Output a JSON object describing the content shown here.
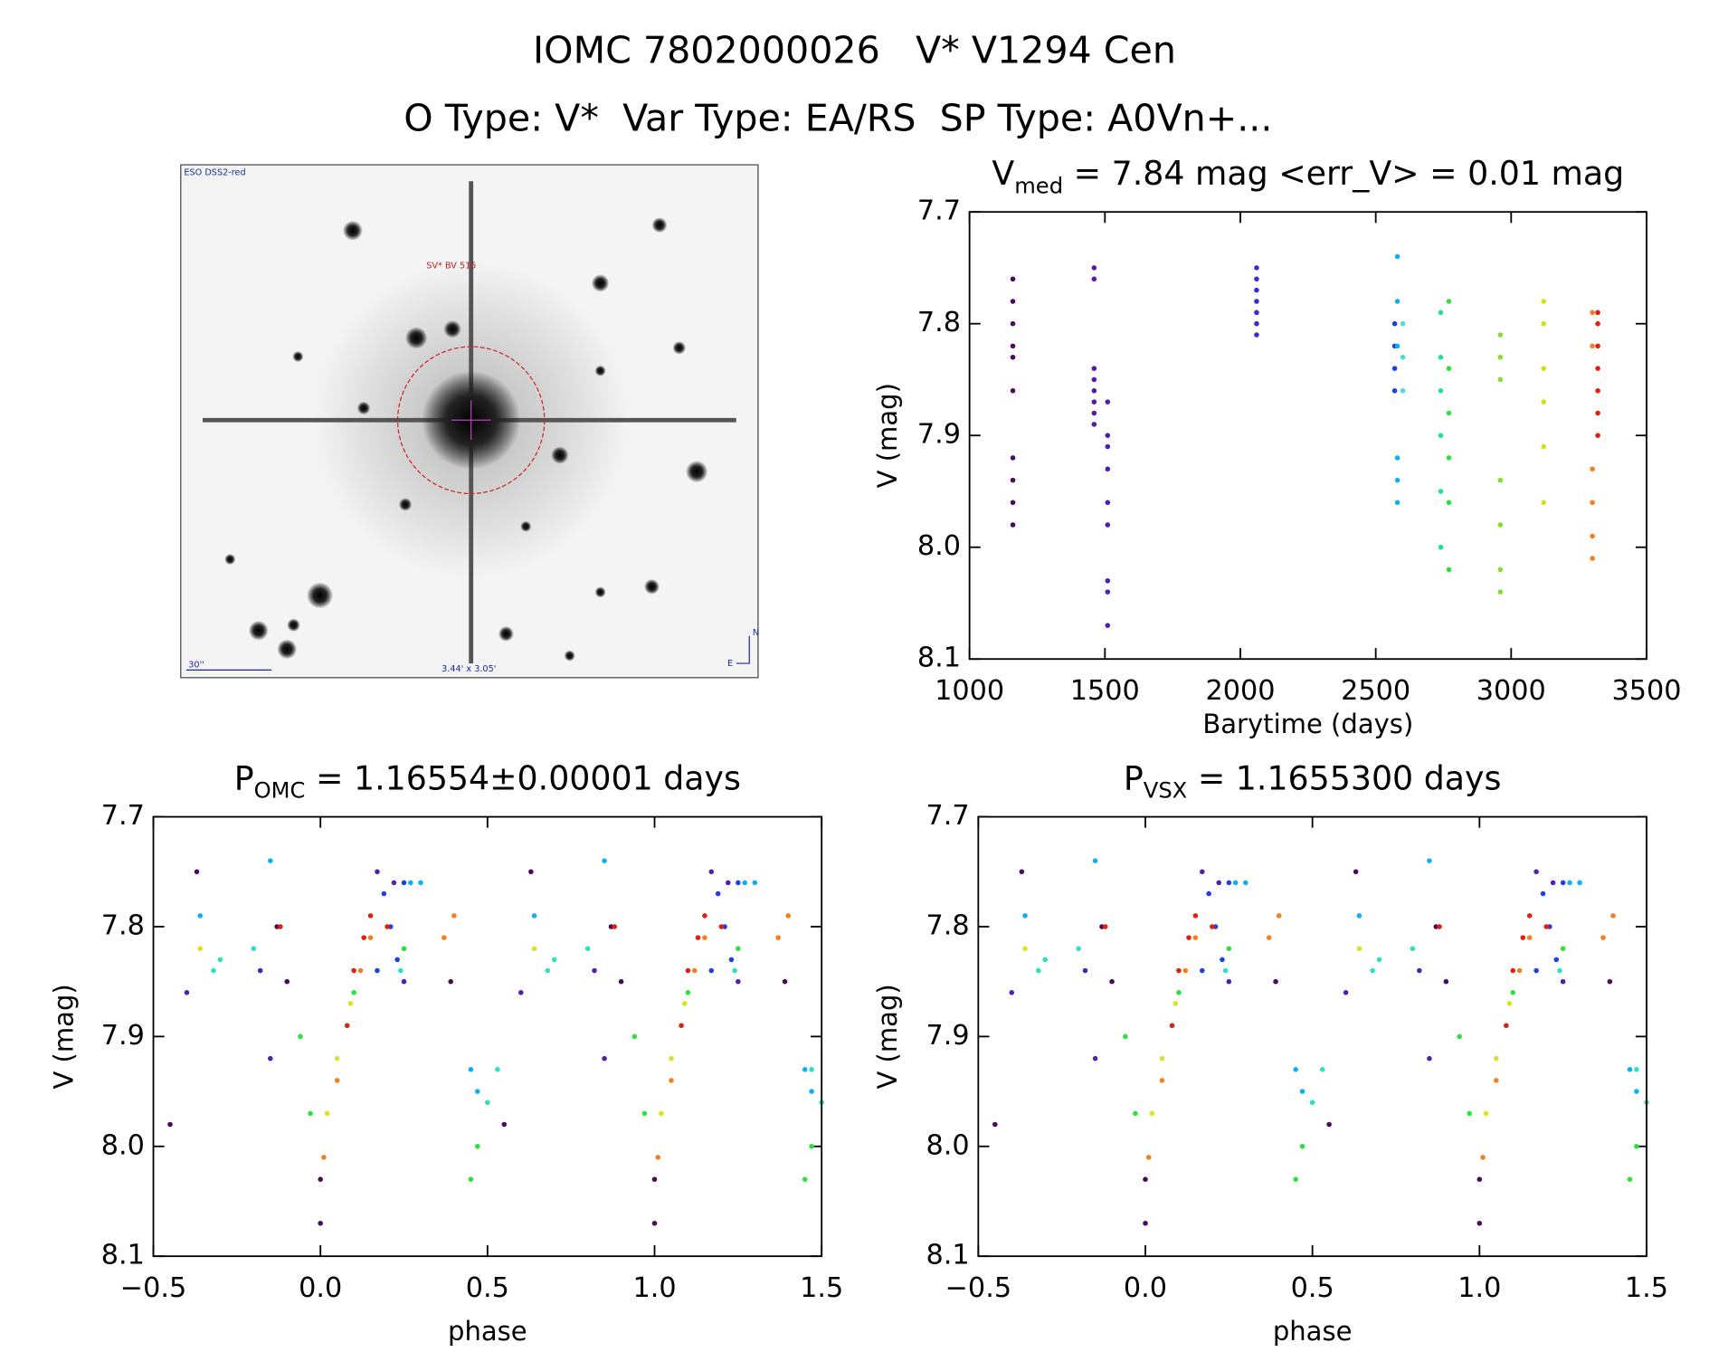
{
  "header": {
    "title": "IOMC 7802000026   V* V1294 Cen",
    "subtitle": "O Type: V*  Var Type: EA/RS  SP Type: A0Vn+..."
  },
  "image_panel": {
    "survey": "ESO DSS2-red",
    "target_label": "SV* BV 515",
    "scale": "30''",
    "fov": "3.44' x 3.05'",
    "north": "N",
    "east": "E"
  },
  "chart_data": [
    {
      "type": "scatter",
      "title_parts": [
        "V",
        "med",
        " = 7.84 mag <err_V> = 0.01 mag"
      ],
      "xlabel": "Barytime (days)",
      "ylabel": "V (mag)",
      "xlim": [
        1000,
        3500
      ],
      "xticks": [
        1000,
        1500,
        2000,
        2500,
        3000,
        3500
      ],
      "ylim": [
        8.1,
        7.7
      ],
      "yticks": [
        7.7,
        7.8,
        7.9,
        {
          "value": 8,
          "label": "8.0"
        },
        8.1
      ],
      "series": [
        {
          "color": "#4b0a5e",
          "x": [
            1160,
            1160,
            1160,
            1160,
            1160,
            1160,
            1160,
            1160,
            1160,
            1160
          ],
          "values": [
            7.76,
            7.78,
            7.8,
            7.82,
            7.83,
            7.86,
            7.92,
            7.94,
            7.96,
            7.98
          ]
        },
        {
          "color": "#5a18a8",
          "x": [
            1460,
            1460,
            1460,
            1460,
            1460,
            1460,
            1460,
            1460
          ],
          "values": [
            7.75,
            7.76,
            7.84,
            7.85,
            7.86,
            7.87,
            7.88,
            7.89
          ]
        },
        {
          "color": "#4a20b0",
          "x": [
            1510,
            1510,
            1510,
            1510,
            1510,
            1510,
            1510,
            1510,
            1510
          ],
          "values": [
            7.87,
            7.9,
            7.91,
            7.93,
            7.96,
            7.98,
            8.03,
            8.04,
            8.07
          ]
        },
        {
          "color": "#3a2ad0",
          "x": [
            2060,
            2060,
            2060,
            2060,
            2060,
            2060,
            2060
          ],
          "values": [
            7.75,
            7.76,
            7.77,
            7.78,
            7.79,
            7.8,
            7.81
          ]
        },
        {
          "color": "#1a40e0",
          "x": [
            2570,
            2570,
            2570,
            2570
          ],
          "values": [
            7.8,
            7.82,
            7.84,
            7.86
          ]
        },
        {
          "color": "#10b0f0",
          "x": [
            2580,
            2580,
            2580,
            2580,
            2580,
            2580
          ],
          "values": [
            7.74,
            7.78,
            7.82,
            7.92,
            7.94,
            7.96
          ]
        },
        {
          "color": "#40e0e0",
          "x": [
            2600,
            2600,
            2600
          ],
          "values": [
            7.8,
            7.83,
            7.86
          ]
        },
        {
          "color": "#20e0a0",
          "x": [
            2740,
            2740,
            2740,
            2740,
            2740,
            2740
          ],
          "values": [
            7.79,
            7.83,
            7.86,
            7.9,
            7.95,
            8.0
          ]
        },
        {
          "color": "#30e040",
          "x": [
            2770,
            2770,
            2770,
            2770,
            2770,
            2770
          ],
          "values": [
            7.78,
            7.84,
            7.88,
            7.92,
            7.96,
            8.02
          ]
        },
        {
          "color": "#80e030",
          "x": [
            2960,
            2960,
            2960,
            2960,
            2960,
            2960,
            2960
          ],
          "values": [
            7.81,
            7.83,
            7.85,
            7.94,
            7.98,
            8.02,
            8.04
          ]
        },
        {
          "color": "#d0e020",
          "x": [
            3120,
            3120,
            3120,
            3120,
            3120,
            3120
          ],
          "values": [
            7.78,
            7.8,
            7.84,
            7.87,
            7.91,
            7.96
          ]
        },
        {
          "color": "#f08020",
          "x": [
            3300,
            3300,
            3300,
            3300,
            3300,
            3300
          ],
          "values": [
            7.79,
            7.82,
            7.93,
            7.96,
            7.99,
            8.01
          ]
        },
        {
          "color": "#e02010",
          "x": [
            3320,
            3320,
            3320,
            3320,
            3320,
            3320,
            3320
          ],
          "values": [
            7.79,
            7.8,
            7.82,
            7.84,
            7.86,
            7.88,
            7.9
          ]
        }
      ]
    },
    {
      "type": "scatter",
      "title_parts": [
        "P",
        "OMC",
        " = 1.16554±0.00001 days"
      ],
      "xlabel": "phase",
      "ylabel": "V (mag)",
      "xlim": [
        -0.5,
        1.5
      ],
      "xticks": [
        {
          "value": -0.5,
          "label": "−0.5"
        },
        {
          "value": 0,
          "label": "0.0"
        },
        0.5,
        {
          "value": 1,
          "label": "1.0"
        },
        1.5
      ],
      "ylim": [
        8.1,
        7.7
      ],
      "yticks": [
        7.7,
        7.8,
        7.9,
        {
          "value": 8,
          "label": "8.0"
        },
        8.1
      ],
      "series": [
        {
          "color": "#4b0a5e",
          "x": [
            -0.37,
            -0.13,
            -0.1,
            0.0,
            0.0,
            -0.45,
            0.39,
            0.63,
            0.87,
            0.9,
            1.0,
            1.0,
            0.55,
            1.39
          ],
          "values": [
            7.75,
            7.8,
            7.85,
            8.03,
            8.07,
            7.98,
            7.85,
            7.75,
            7.8,
            7.85,
            8.03,
            8.07,
            7.98,
            7.85
          ]
        },
        {
          "color": "#5020b0",
          "x": [
            -0.4,
            -0.18,
            -0.15,
            0.17,
            0.22,
            0.25,
            0.6,
            0.82,
            0.85,
            1.17,
            1.22,
            1.25
          ],
          "values": [
            7.86,
            7.84,
            7.92,
            7.75,
            7.76,
            7.85,
            7.86,
            7.84,
            7.92,
            7.75,
            7.76,
            7.85
          ]
        },
        {
          "color": "#2040e0",
          "x": [
            0.19,
            0.21,
            0.25,
            0.23,
            0.17,
            1.19,
            1.21,
            1.25,
            1.23,
            1.17
          ],
          "values": [
            7.77,
            7.8,
            7.76,
            7.83,
            7.84,
            7.77,
            7.8,
            7.76,
            7.83,
            7.84
          ]
        },
        {
          "color": "#10b0f0",
          "x": [
            -0.36,
            -0.15,
            0.27,
            0.45,
            0.47,
            0.3,
            0.64,
            0.85,
            1.27,
            1.45,
            1.47,
            1.3
          ],
          "values": [
            7.79,
            7.74,
            7.76,
            7.93,
            7.95,
            7.76,
            7.79,
            7.74,
            7.76,
            7.93,
            7.95,
            7.76
          ]
        },
        {
          "color": "#30e0c0",
          "x": [
            -0.32,
            -0.3,
            -0.2,
            0.24,
            0.5,
            0.53,
            0.68,
            0.7,
            0.8,
            1.24,
            1.5,
            1.47
          ],
          "values": [
            7.84,
            7.83,
            7.82,
            7.84,
            7.96,
            7.93,
            7.84,
            7.83,
            7.82,
            7.84,
            7.96,
            7.93
          ]
        },
        {
          "color": "#30e040",
          "x": [
            -0.06,
            -0.03,
            0.1,
            0.25,
            0.47,
            0.45,
            0.94,
            0.97,
            1.1,
            1.25,
            1.47,
            1.45
          ],
          "values": [
            7.9,
            7.97,
            7.86,
            7.82,
            8.0,
            8.03,
            7.9,
            7.97,
            7.86,
            7.82,
            8.0,
            8.03
          ]
        },
        {
          "color": "#e0e020",
          "x": [
            -0.36,
            0.02,
            0.05,
            0.09,
            0.64,
            1.02,
            1.05,
            1.09
          ],
          "values": [
            7.82,
            7.97,
            7.92,
            7.87,
            7.82,
            7.97,
            7.92,
            7.87
          ]
        },
        {
          "color": "#f08020",
          "x": [
            0.01,
            0.05,
            0.12,
            0.15,
            0.37,
            0.4,
            1.01,
            1.05,
            1.12,
            1.15,
            1.37,
            1.4
          ],
          "values": [
            8.01,
            7.94,
            7.84,
            7.81,
            7.81,
            7.79,
            8.01,
            7.94,
            7.84,
            7.81,
            7.81,
            7.79
          ]
        },
        {
          "color": "#e02010",
          "x": [
            -0.12,
            0.08,
            0.1,
            0.13,
            0.15,
            0.2,
            0.88,
            1.08,
            1.1,
            1.13,
            1.15,
            1.2
          ],
          "values": [
            7.8,
            7.89,
            7.84,
            7.81,
            7.79,
            7.8,
            7.8,
            7.89,
            7.84,
            7.81,
            7.79,
            7.8
          ]
        }
      ]
    },
    {
      "type": "scatter",
      "title_parts": [
        "P",
        "VSX",
        " = 1.1655300 days"
      ],
      "xlabel": "phase",
      "ylabel": "V (mag)",
      "xlim": [
        -0.5,
        1.5
      ],
      "xticks": [
        {
          "value": -0.5,
          "label": "−0.5"
        },
        {
          "value": 0,
          "label": "0.0"
        },
        0.5,
        {
          "value": 1,
          "label": "1.0"
        },
        1.5
      ],
      "ylim": [
        8.1,
        7.7
      ],
      "yticks": [
        7.7,
        7.8,
        7.9,
        {
          "value": 8,
          "label": "8.0"
        },
        8.1
      ],
      "series": [
        {
          "color": "#4b0a5e",
          "x": [
            -0.37,
            -0.13,
            -0.1,
            0.0,
            0.0,
            -0.45,
            0.39,
            0.63,
            0.87,
            0.9,
            1.0,
            1.0,
            0.55,
            1.39
          ],
          "values": [
            7.75,
            7.8,
            7.85,
            8.03,
            8.07,
            7.98,
            7.85,
            7.75,
            7.8,
            7.85,
            8.03,
            8.07,
            7.98,
            7.85
          ]
        },
        {
          "color": "#5020b0",
          "x": [
            -0.4,
            -0.18,
            -0.15,
            0.17,
            0.22,
            0.25,
            0.6,
            0.82,
            0.85,
            1.17,
            1.22,
            1.25
          ],
          "values": [
            7.86,
            7.84,
            7.92,
            7.75,
            7.76,
            7.85,
            7.86,
            7.84,
            7.92,
            7.75,
            7.76,
            7.85
          ]
        },
        {
          "color": "#2040e0",
          "x": [
            0.19,
            0.21,
            0.25,
            0.23,
            0.17,
            1.19,
            1.21,
            1.25,
            1.23,
            1.17
          ],
          "values": [
            7.77,
            7.8,
            7.76,
            7.83,
            7.84,
            7.77,
            7.8,
            7.76,
            7.83,
            7.84
          ]
        },
        {
          "color": "#10b0f0",
          "x": [
            -0.36,
            -0.15,
            0.27,
            0.45,
            0.47,
            0.3,
            0.64,
            0.85,
            1.27,
            1.45,
            1.47,
            1.3
          ],
          "values": [
            7.79,
            7.74,
            7.76,
            7.93,
            7.95,
            7.76,
            7.79,
            7.74,
            7.76,
            7.93,
            7.95,
            7.76
          ]
        },
        {
          "color": "#30e0c0",
          "x": [
            -0.32,
            -0.3,
            -0.2,
            0.24,
            0.5,
            0.53,
            0.68,
            0.7,
            0.8,
            1.24,
            1.5,
            1.47
          ],
          "values": [
            7.84,
            7.83,
            7.82,
            7.84,
            7.96,
            7.93,
            7.84,
            7.83,
            7.82,
            7.84,
            7.96,
            7.93
          ]
        },
        {
          "color": "#30e040",
          "x": [
            -0.06,
            -0.03,
            0.1,
            0.25,
            0.47,
            0.45,
            0.94,
            0.97,
            1.1,
            1.25,
            1.47,
            1.45
          ],
          "values": [
            7.9,
            7.97,
            7.86,
            7.82,
            8.0,
            8.03,
            7.9,
            7.97,
            7.86,
            7.82,
            8.0,
            8.03
          ]
        },
        {
          "color": "#e0e020",
          "x": [
            -0.36,
            0.02,
            0.05,
            0.09,
            0.64,
            1.02,
            1.05,
            1.09
          ],
          "values": [
            7.82,
            7.97,
            7.92,
            7.87,
            7.82,
            7.97,
            7.92,
            7.87
          ]
        },
        {
          "color": "#f08020",
          "x": [
            0.01,
            0.05,
            0.12,
            0.15,
            0.37,
            0.4,
            1.01,
            1.05,
            1.12,
            1.15,
            1.37,
            1.4
          ],
          "values": [
            8.01,
            7.94,
            7.84,
            7.81,
            7.81,
            7.79,
            8.01,
            7.94,
            7.84,
            7.81,
            7.81,
            7.79
          ]
        },
        {
          "color": "#e02010",
          "x": [
            -0.12,
            0.08,
            0.1,
            0.13,
            0.15,
            0.2,
            0.88,
            1.08,
            1.1,
            1.13,
            1.15,
            1.2
          ],
          "values": [
            7.8,
            7.89,
            7.84,
            7.81,
            7.79,
            7.8,
            7.8,
            7.89,
            7.84,
            7.81,
            7.79,
            7.8
          ]
        }
      ]
    }
  ]
}
